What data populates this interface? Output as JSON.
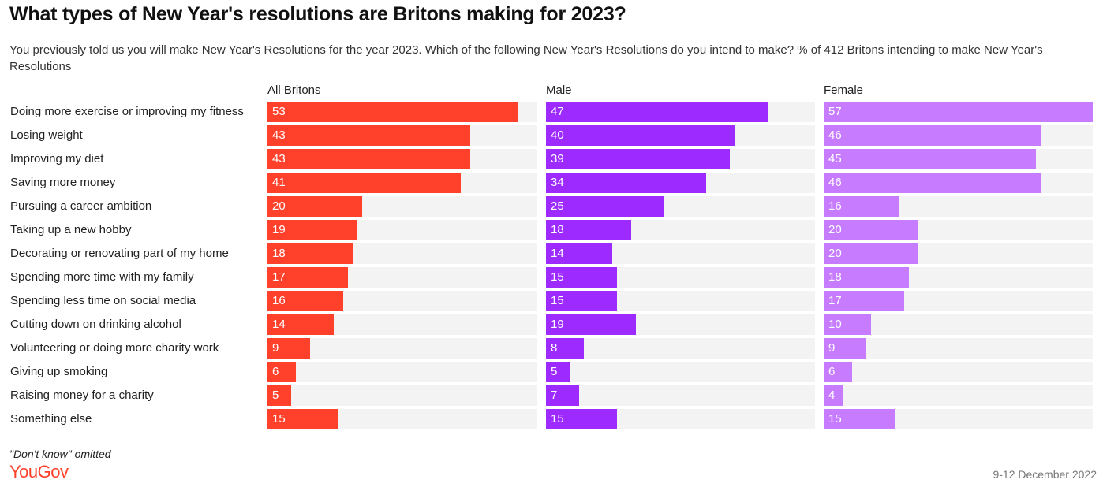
{
  "title": "What types of New Year's resolutions are Britons making for 2023?",
  "subtitle": "You previously told us you will make New Year's Resolutions for the year 2023. Which of the following New Year's Resolutions do you intend to make? % of 412 Britons intending to make New Year's Resolutions",
  "footnote": "\"Don't know\" omitted",
  "logo": "YouGov",
  "date": "9-12 December 2022",
  "colors": {
    "all": "#ff412c",
    "male": "#9d2aff",
    "female": "#c77bff",
    "track": "#f3f3f3",
    "brand": "#ff412c"
  },
  "chart_data": {
    "type": "bar",
    "orientation": "horizontal",
    "scale_max": 57,
    "categories": [
      "Doing more exercise or improving my fitness",
      "Losing weight",
      "Improving my diet",
      "Saving more money",
      "Pursuing a career ambition",
      "Taking up a new hobby",
      "Decorating or renovating part of my home",
      "Spending more time with my family",
      "Spending less time on social media",
      "Cutting down on drinking alcohol",
      "Volunteering or doing more charity work",
      "Giving up smoking",
      "Raising money for a charity",
      "Something else"
    ],
    "series": [
      {
        "name": "All Britons",
        "color": "#ff412c",
        "values": [
          53,
          43,
          43,
          41,
          20,
          19,
          18,
          17,
          16,
          14,
          9,
          6,
          5,
          15
        ]
      },
      {
        "name": "Male",
        "color": "#9d2aff",
        "values": [
          47,
          40,
          39,
          34,
          25,
          18,
          14,
          15,
          15,
          19,
          8,
          5,
          7,
          15
        ]
      },
      {
        "name": "Female",
        "color": "#c77bff",
        "values": [
          57,
          46,
          45,
          46,
          16,
          20,
          20,
          18,
          17,
          10,
          9,
          6,
          4,
          15
        ]
      }
    ]
  }
}
